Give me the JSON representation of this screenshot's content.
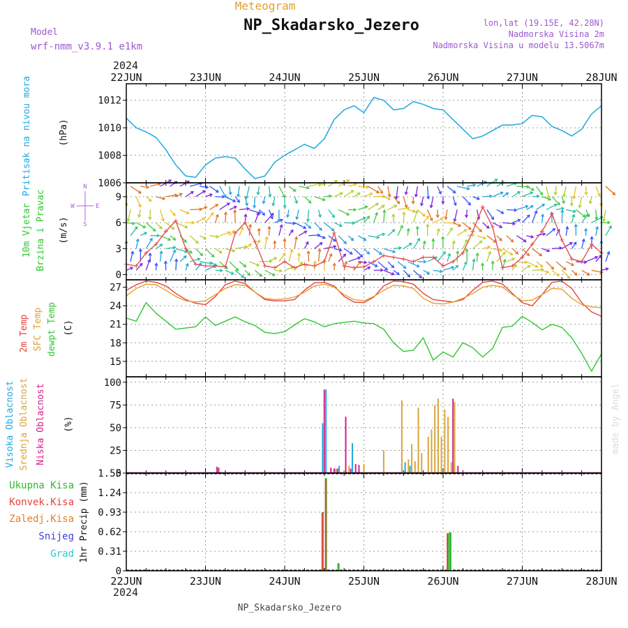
{
  "header": {
    "subtitle": "Meteogram",
    "station": "NP_Skadarsko_Jezero",
    "model_label": "Model",
    "model_name": "wrf-nmm_v3.9.1 e1km",
    "lonlat": "lon,lat (19.15E, 42.28N)",
    "elevation": "Nadmorska Visina 2m",
    "model_elevation": "Nadmorska Visina u modelu 13.5067m",
    "year_top": "2024",
    "year_bottom": "2024",
    "footer_station": "NP_Skadarsko_Jezero",
    "credit": "made by Angel"
  },
  "colors": {
    "pressure": "#1fa8e0",
    "temp2m": "#e8413c",
    "sfc": "#e0a030",
    "dewpt": "#2ec82e",
    "high_cloud": "#1fa8e0",
    "mid_cloud": "#d9a53a",
    "low_cloud": "#d4208a",
    "precip_total": "#2eb82e",
    "precip_conv": "#e8413c",
    "precip_frozen": "#e0802a",
    "snow": "#4040e0",
    "graupel": "#2ec8c8",
    "wind_speed": "#e05050",
    "grid": "#999999"
  },
  "chart_data": [
    {
      "type": "line",
      "panel": "pressure",
      "ylabel_main": "Pritisak na nivou mora",
      "ylabel_unit": "(hPa)",
      "x_unit": "hours since 22JUN 00UTC",
      "x_ticks": [
        "22JUN",
        "23JUN",
        "24JUN",
        "25JUN",
        "26JUN",
        "27JUN",
        "28JUN"
      ],
      "ylim": [
        1006,
        1013.2
      ],
      "yticks": [
        1006,
        1008,
        1010,
        1012
      ],
      "series": [
        {
          "name": "",
          "x": [
            0,
            3,
            6,
            9,
            12,
            15,
            18,
            21,
            24,
            27,
            30,
            33,
            36,
            39,
            42,
            45,
            48,
            51,
            54,
            57,
            60,
            63,
            66,
            69,
            72,
            75,
            78,
            81,
            84,
            87,
            90,
            93,
            96,
            99,
            102,
            105,
            108,
            111,
            114,
            117,
            120,
            123,
            126,
            129,
            132,
            135,
            138,
            141,
            144
          ],
          "values": [
            1010.7,
            1010.0,
            1009.7,
            1009.3,
            1008.4,
            1007.3,
            1006.5,
            1006.4,
            1007.3,
            1007.8,
            1007.9,
            1007.8,
            1007.0,
            1006.3,
            1006.5,
            1007.5,
            1008.0,
            1008.4,
            1008.8,
            1008.5,
            1009.2,
            1010.6,
            1011.3,
            1011.6,
            1011.1,
            1012.2,
            1012.0,
            1011.3,
            1011.4,
            1011.9,
            1011.7,
            1011.4,
            1011.3,
            1010.6,
            1009.9,
            1009.2,
            1009.4,
            1009.8,
            1010.2,
            1010.2,
            1010.3,
            1010.9,
            1010.8,
            1010.1,
            1009.8,
            1009.4,
            1009.9,
            1011.0,
            1011.6
          ]
        }
      ]
    },
    {
      "type": "line",
      "panel": "wind",
      "ylabel_main": "10m Vjetar",
      "ylabel_sub": "Brzina i Pravac",
      "ylabel_unit": "(m/s)",
      "compass": {
        "n": "N",
        "s": "S",
        "e": "E",
        "w": "W"
      },
      "ylim": [
        -0.6,
        10.6
      ],
      "yticks": [
        0,
        3,
        6,
        9
      ],
      "series": [
        {
          "name": "",
          "x": [
            0,
            3,
            6,
            9,
            12,
            15,
            18,
            21,
            24,
            27,
            30,
            33,
            36,
            39,
            42,
            45,
            48,
            51,
            54,
            57,
            60,
            63,
            66,
            69,
            72,
            75,
            78,
            81,
            84,
            87,
            90,
            93,
            96,
            99,
            102,
            105,
            108,
            111,
            114,
            117,
            120,
            123,
            126,
            129,
            132,
            135,
            138,
            141,
            144
          ],
          "values": [
            1.2,
            1.0,
            2.5,
            3.5,
            5.0,
            6.2,
            3.0,
            1.2,
            1.0,
            1.0,
            0.9,
            4.8,
            6.0,
            3.8,
            1.0,
            0.8,
            1.5,
            0.8,
            1.2,
            1.0,
            1.5,
            4.8,
            1.0,
            0.8,
            0.9,
            1.5,
            2.2,
            2.0,
            1.8,
            1.5,
            2.0,
            2.0,
            1.0,
            1.5,
            2.5,
            5.0,
            7.8,
            5.5,
            0.8,
            1.0,
            2.0,
            3.5,
            5.0,
            7.0,
            4.0,
            1.8,
            1.5,
            3.5,
            2.5
          ]
        }
      ]
    },
    {
      "type": "line",
      "panel": "temperature",
      "ylabel_lines": [
        "2m Temp",
        "SFC Temp",
        "dewpt Temp"
      ],
      "ylabel_unit": "(C)",
      "ylim": [
        12.5,
        28.2
      ],
      "yticks": [
        15,
        18,
        21,
        24,
        27
      ],
      "series": [
        {
          "name": "2m Temp",
          "x": [
            0,
            3,
            6,
            9,
            12,
            15,
            18,
            21,
            24,
            27,
            30,
            33,
            36,
            39,
            42,
            45,
            48,
            51,
            54,
            57,
            60,
            63,
            66,
            69,
            72,
            75,
            78,
            81,
            84,
            87,
            90,
            93,
            96,
            99,
            102,
            105,
            108,
            111,
            114,
            117,
            120,
            123,
            126,
            129,
            132,
            135,
            138,
            141,
            144
          ],
          "values": [
            26.5,
            27.4,
            28.0,
            27.8,
            27.2,
            26.0,
            25.0,
            24.4,
            24.2,
            25.5,
            27.4,
            28.0,
            27.6,
            26.2,
            25.0,
            24.8,
            24.8,
            25.0,
            26.5,
            27.7,
            27.8,
            27.2,
            25.5,
            24.6,
            24.5,
            25.4,
            27.2,
            28.0,
            27.9,
            27.5,
            26.0,
            25.0,
            24.8,
            24.6,
            25.0,
            26.5,
            27.8,
            28.0,
            27.5,
            26.0,
            24.5,
            24.0,
            25.8,
            27.8,
            28.0,
            26.8,
            24.5,
            23.0,
            22.3
          ]
        },
        {
          "name": "SFC Temp",
          "x": [
            0,
            3,
            6,
            9,
            12,
            15,
            18,
            21,
            24,
            27,
            30,
            33,
            36,
            39,
            42,
            45,
            48,
            51,
            54,
            57,
            60,
            63,
            66,
            69,
            72,
            75,
            78,
            81,
            84,
            87,
            90,
            93,
            96,
            99,
            102,
            105,
            108,
            111,
            114,
            117,
            120,
            123,
            126,
            129,
            132,
            135,
            138,
            141,
            144
          ],
          "values": [
            25.6,
            26.8,
            27.5,
            27.4,
            26.5,
            25.5,
            24.8,
            24.6,
            24.8,
            25.8,
            26.8,
            27.4,
            27.3,
            26.2,
            25.2,
            25.0,
            25.1,
            25.4,
            26.2,
            27.2,
            27.5,
            27.0,
            25.8,
            25.0,
            24.8,
            25.5,
            26.5,
            27.3,
            27.2,
            26.8,
            25.2,
            24.4,
            24.3,
            24.6,
            25.2,
            26.0,
            27.0,
            27.3,
            27.0,
            25.8,
            24.8,
            24.9,
            25.8,
            26.8,
            26.7,
            25.2,
            24.2,
            23.8,
            23.7
          ]
        },
        {
          "name": "dewpt Temp",
          "x": [
            0,
            3,
            6,
            9,
            12,
            15,
            18,
            21,
            24,
            27,
            30,
            33,
            36,
            39,
            42,
            45,
            48,
            51,
            54,
            57,
            60,
            63,
            66,
            69,
            72,
            75,
            78,
            81,
            84,
            87,
            90,
            93,
            96,
            99,
            102,
            105,
            108,
            111,
            114,
            117,
            120,
            123,
            126,
            129,
            132,
            135,
            138,
            141,
            144
          ],
          "values": [
            22.0,
            21.5,
            24.5,
            22.8,
            21.5,
            20.2,
            20.4,
            20.6,
            22.2,
            20.8,
            21.5,
            22.2,
            21.4,
            20.8,
            19.7,
            19.5,
            19.8,
            20.9,
            21.9,
            21.4,
            20.6,
            21.1,
            21.3,
            21.5,
            21.2,
            21.1,
            20.2,
            18.0,
            16.6,
            16.8,
            18.8,
            15.2,
            16.5,
            15.7,
            18.0,
            17.2,
            15.7,
            17.1,
            20.5,
            20.7,
            22.3,
            21.3,
            20.1,
            21.0,
            20.5,
            18.8,
            16.3,
            13.4,
            16.2
          ]
        }
      ]
    },
    {
      "type": "bar",
      "panel": "clouds",
      "ylabel_lines": [
        "Visoka Oblacnost",
        "Srednja Oblacnost",
        "Niska Oblacnost"
      ],
      "ylabel_unit": "(%)",
      "ylim": [
        0,
        106
      ],
      "yticks": [
        0,
        25,
        50,
        75,
        100
      ],
      "series": [
        {
          "name": "Visoka Oblacnost",
          "x": [
            59.5,
            60.5,
            64.5,
            66.5,
            68.5,
            83.5,
            84.5,
            86.0
          ],
          "values": [
            55,
            92,
            8,
            62,
            33,
            10,
            12,
            8
          ]
        },
        {
          "name": "Srednja Oblacnost",
          "x": [
            63.5,
            66,
            67.5,
            72,
            78,
            83.5,
            85.5,
            86.5,
            87.5,
            88.5,
            89.5,
            91.5,
            92.5,
            93.5,
            94.5,
            95.5,
            96.5,
            97.5,
            98.5,
            99.5
          ],
          "values": [
            5,
            3,
            8,
            10,
            25,
            80,
            15,
            32,
            13,
            72,
            22,
            40,
            48,
            75,
            82,
            40,
            70,
            62,
            12,
            78
          ]
        },
        {
          "name": "Niska Oblacnost",
          "x": [
            27.5,
            28,
            60,
            62,
            63,
            64,
            66.5,
            68,
            69.5,
            70.5,
            99.0,
            100.5
          ],
          "values": [
            7,
            6,
            92,
            6,
            5,
            5,
            62,
            5,
            10,
            9,
            82,
            8
          ]
        }
      ]
    },
    {
      "type": "bar",
      "panel": "precipitation",
      "legend": [
        "Ukupna Kisa",
        "Konvek.Kisa",
        "Zaledj.Kisa",
        "Snijeg",
        "Grad"
      ],
      "ylabel_unit": "1hr Precip (mm)",
      "ylim": [
        0,
        1.55
      ],
      "yticks": [
        "0",
        "0.31",
        "0.62",
        "0.93",
        "1.24",
        "1.55"
      ],
      "series": [
        {
          "name": "Ukupna Kisa",
          "x": [
            59.5,
            60.5,
            64.3,
            97.5,
            98.2
          ],
          "values": [
            0.93,
            1.47,
            0.12,
            0.6,
            0.61
          ]
        },
        {
          "name": "Konvek.Kisa",
          "x": [
            59.4,
            60.4,
            97.3
          ],
          "values": [
            0.92,
            1.45,
            0.59
          ]
        }
      ]
    }
  ]
}
